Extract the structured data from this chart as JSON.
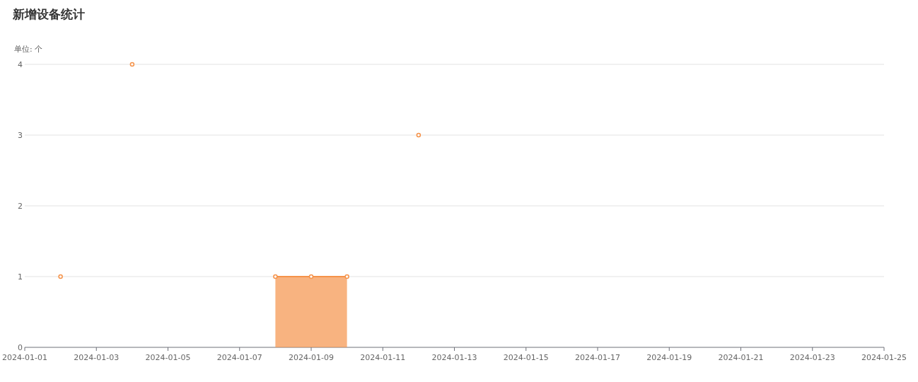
{
  "chart_data": {
    "type": "area",
    "title": "新增设备统计",
    "ylabel": "单位: 个",
    "series": [
      {
        "color": "#f5934a",
        "x": [
          "2024-01-08",
          "2024-01-09",
          "2024-01-10"
        ],
        "values": [
          1,
          1,
          1
        ]
      },
      {
        "type": "scatter",
        "color": "#f5934a",
        "x": [
          "2024-01-02",
          "2024-01-04",
          "2024-01-12"
        ],
        "values": [
          1,
          4,
          3
        ]
      }
    ],
    "xlim": [
      "2024-01-01",
      "2024-01-25"
    ],
    "xticks": [
      "2024-01-01",
      "2024-01-03",
      "2024-01-05",
      "2024-01-07",
      "2024-01-09",
      "2024-01-11",
      "2024-01-13",
      "2024-01-15",
      "2024-01-17",
      "2024-01-19",
      "2024-01-21",
      "2024-01-23",
      "2024-01-25"
    ],
    "ylim": [
      0,
      4
    ],
    "yticks": [
      0,
      1,
      2,
      3,
      4
    ],
    "grid": "y",
    "marker": "circle"
  }
}
